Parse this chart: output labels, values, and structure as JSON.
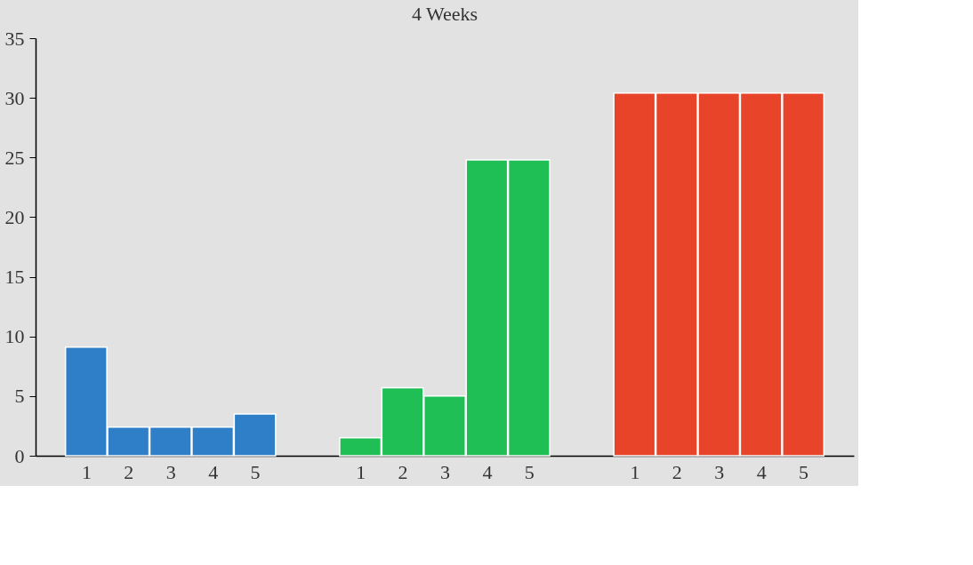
{
  "chart_data": {
    "type": "bar",
    "title": "4 Weeks",
    "categories": [
      "1",
      "2",
      "3",
      "4",
      "5",
      "1",
      "2",
      "3",
      "4",
      "5",
      "1",
      "2",
      "3",
      "4",
      "5"
    ],
    "series": [
      {
        "color": "#2f7fc8",
        "values": [
          9.1,
          2.4,
          2.4,
          2.4,
          3.5,
          null,
          null,
          null,
          null,
          null,
          null,
          null,
          null,
          null,
          null
        ]
      },
      {
        "color": "#1fbf55",
        "values": [
          null,
          null,
          null,
          null,
          null,
          1.5,
          5.7,
          5.0,
          24.8,
          24.8,
          null,
          null,
          null,
          null,
          null
        ]
      },
      {
        "color": "#e8442a",
        "values": [
          null,
          null,
          null,
          null,
          null,
          null,
          null,
          null,
          null,
          null,
          30.4,
          30.4,
          30.4,
          30.4,
          30.4
        ]
      }
    ],
    "ylim": [
      0,
      35
    ],
    "yticks": [
      0,
      5,
      10,
      15,
      20,
      25,
      30,
      35
    ]
  }
}
